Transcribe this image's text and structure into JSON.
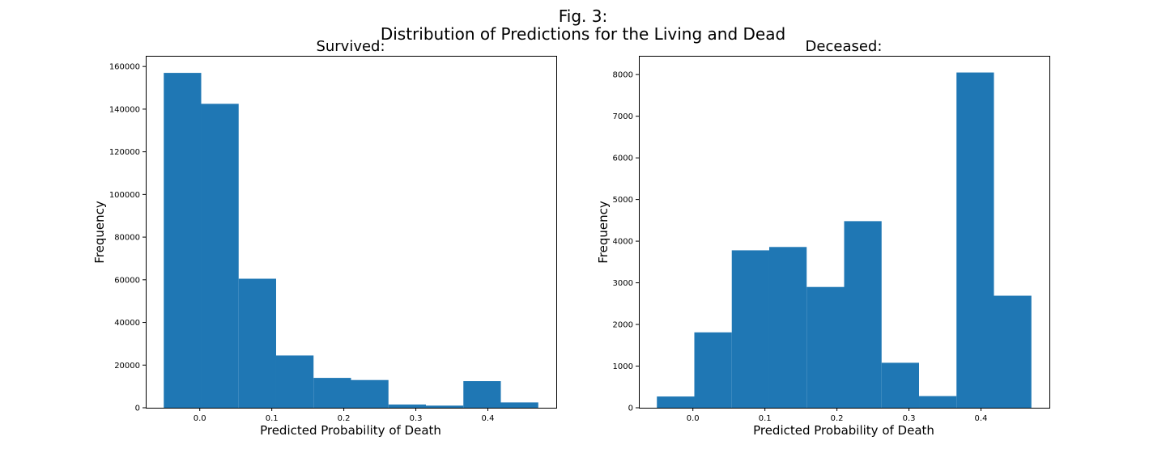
{
  "figure": {
    "title_line1": "Fig. 3:",
    "title_line2": "Distribution of Predictions for the Living and Dead"
  },
  "chart_data": [
    {
      "type": "bar",
      "title": "Survived:",
      "xlabel": "Predicted Probability of Death",
      "ylabel": "Frequency",
      "bin_edges": [
        -0.05,
        0.002,
        0.054,
        0.106,
        0.158,
        0.21,
        0.262,
        0.314,
        0.366,
        0.418,
        0.47
      ],
      "values": [
        157000,
        142500,
        60500,
        24500,
        14000,
        13000,
        1500,
        1000,
        12500,
        2500
      ],
      "xlim": [
        -0.075,
        0.495
      ],
      "ylim": [
        0,
        165000
      ],
      "xticks": [
        0.0,
        0.1,
        0.2,
        0.3,
        0.4
      ],
      "xtick_labels": [
        "0.0",
        "0.1",
        "0.2",
        "0.3",
        "0.4"
      ],
      "yticks": [
        0,
        20000,
        40000,
        60000,
        80000,
        100000,
        120000,
        140000,
        160000
      ],
      "ytick_labels": [
        "0",
        "20000",
        "40000",
        "60000",
        "80000",
        "100000",
        "120000",
        "140000",
        "160000"
      ],
      "color": "#1f77b4",
      "grid": false
    },
    {
      "type": "bar",
      "title": "Deceased:",
      "xlabel": "Predicted Probability of Death",
      "ylabel": "Frequency",
      "bin_edges": [
        -0.05,
        0.002,
        0.054,
        0.106,
        0.158,
        0.21,
        0.262,
        0.314,
        0.366,
        0.418,
        0.47
      ],
      "values": [
        270,
        1810,
        3780,
        3860,
        2900,
        4480,
        1080,
        280,
        8050,
        2690
      ],
      "xlim": [
        -0.075,
        0.495
      ],
      "ylim": [
        0,
        8450
      ],
      "xticks": [
        0.0,
        0.1,
        0.2,
        0.3,
        0.4
      ],
      "xtick_labels": [
        "0.0",
        "0.1",
        "0.2",
        "0.3",
        "0.4"
      ],
      "yticks": [
        0,
        1000,
        2000,
        3000,
        4000,
        5000,
        6000,
        7000,
        8000
      ],
      "ytick_labels": [
        "0",
        "1000",
        "2000",
        "3000",
        "4000",
        "5000",
        "6000",
        "7000",
        "8000"
      ],
      "color": "#1f77b4",
      "grid": false
    }
  ]
}
